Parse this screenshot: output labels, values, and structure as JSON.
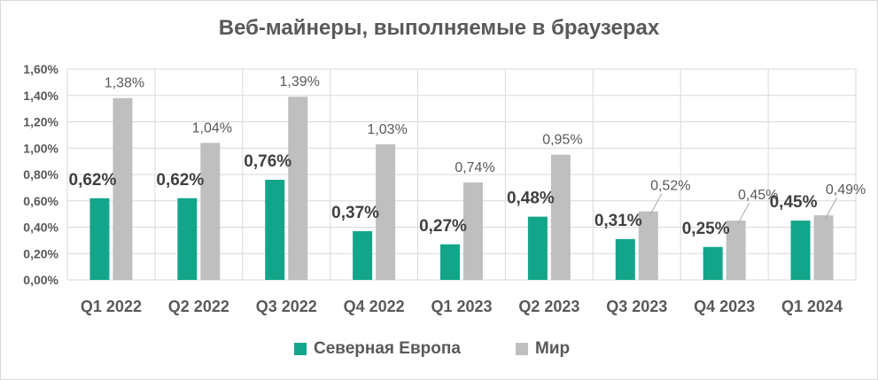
{
  "chart_data": {
    "type": "bar",
    "title": "Веб-майнеры, выполняемые в браузерах",
    "categories": [
      "Q1 2022",
      "Q2 2022",
      "Q3 2022",
      "Q4 2022",
      "Q1 2023",
      "Q2 2023",
      "Q3 2023",
      "Q4 2023",
      "Q1 2024"
    ],
    "series": [
      {
        "name": "Северная Европа",
        "color": "#13a58a",
        "values": [
          0.62,
          0.62,
          0.76,
          0.37,
          0.27,
          0.48,
          0.31,
          0.25,
          0.45
        ],
        "labels": [
          "0,62%",
          "0,62%",
          "0,76%",
          "0,37%",
          "0,27%",
          "0,48%",
          "0,31%",
          "0,25%",
          "0,45%"
        ]
      },
      {
        "name": "Мир",
        "color": "#bfbfbf",
        "values": [
          1.38,
          1.04,
          1.39,
          1.03,
          0.74,
          0.95,
          0.52,
          0.45,
          0.49
        ],
        "labels": [
          "1,38%",
          "1,04%",
          "1,39%",
          "1,03%",
          "0,74%",
          "0,95%",
          "0,52%",
          "0,45%",
          "0,49%"
        ]
      }
    ],
    "ylim": [
      0,
      1.6
    ],
    "yticks": [
      "0,00%",
      "0,20%",
      "0,40%",
      "0,60%",
      "0,80%",
      "1,00%",
      "1,20%",
      "1,40%",
      "1,60%"
    ],
    "grid": true,
    "legend_position": "bottom",
    "xlabel": "",
    "ylabel": ""
  }
}
